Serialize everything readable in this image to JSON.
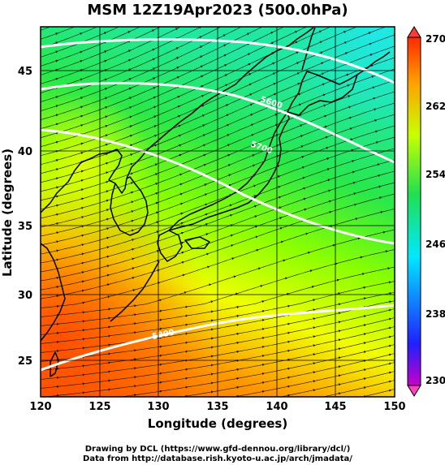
{
  "title": "MSM 12Z19Apr2023 (500.0hPa)",
  "xlabel": "Longitude (degrees)",
  "ylabel": "Latitude  (degrees)",
  "x_ticks": [
    "120",
    "125",
    "130",
    "135",
    "140",
    "145",
    "150"
  ],
  "y_ticks": [
    "25",
    "30",
    "35",
    "40",
    "45"
  ],
  "colorbar": {
    "ticks": [
      "230",
      "238",
      "246",
      "254",
      "262",
      "270"
    ],
    "unit": ""
  },
  "contour_labels": [
    "5600",
    "5700",
    "5800"
  ],
  "credits": {
    "line1": "Drawing by DCL (https://www.gfd-dennou.org/library/dcl/)",
    "line2": "Data from http://database.rish.kyoto-u.ac.jp/arch/jmadata/"
  },
  "map_data": {
    "type": "filled-contour with streamlines",
    "variable_range": [
      230,
      270
    ],
    "lon_range": [
      120,
      150
    ],
    "lat_range": [
      22.4,
      47.6
    ],
    "colors": [
      "#c800c8",
      "#2020ff",
      "#00e0ff",
      "#00ff40",
      "#c8ff00",
      "#ffa000",
      "#ff2000"
    ]
  }
}
